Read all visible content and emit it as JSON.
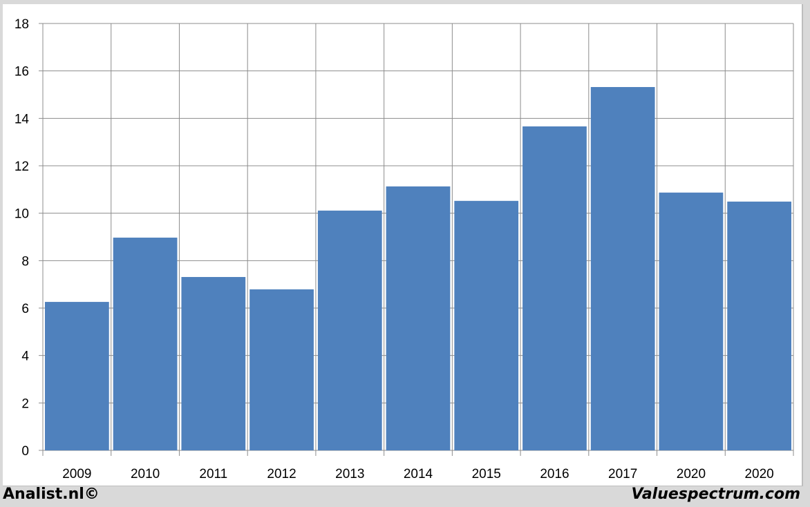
{
  "chart_data": {
    "type": "bar",
    "categories": [
      "2009",
      "2010",
      "2011",
      "2012",
      "2013",
      "2014",
      "2015",
      "2016",
      "2017",
      "2020",
      "2020"
    ],
    "values": [
      6.26,
      8.97,
      7.31,
      6.79,
      10.11,
      11.13,
      10.52,
      13.66,
      15.32,
      10.87,
      10.49
    ],
    "title": "",
    "xlabel": "",
    "ylabel": "",
    "ylim": [
      0,
      18
    ],
    "yticks": [
      0,
      2,
      4,
      6,
      8,
      10,
      12,
      14,
      16,
      18
    ],
    "grid": true,
    "bar_color": "#4f81bd"
  },
  "footer": {
    "left": "Analist.nl©",
    "right": "Valuespectrum.com"
  }
}
